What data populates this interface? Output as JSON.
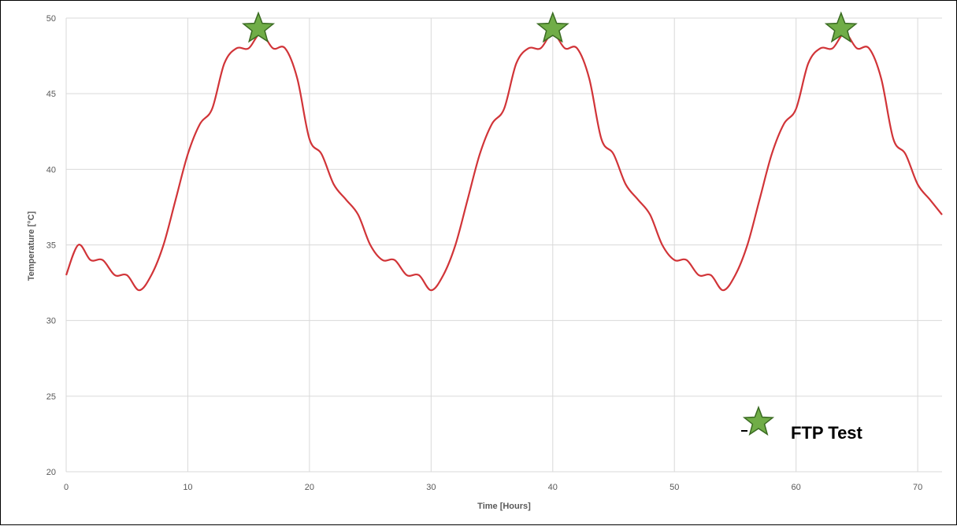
{
  "chart_data": {
    "type": "line",
    "xlabel": "Time [Hours]",
    "ylabel": "Temperature [°C]",
    "xlim": [
      0,
      72
    ],
    "ylim": [
      20,
      50
    ],
    "x_ticks": [
      0,
      10,
      20,
      30,
      40,
      50,
      60,
      70
    ],
    "y_ticks": [
      20,
      25,
      30,
      35,
      40,
      45,
      50
    ],
    "grid": true,
    "series": [
      {
        "color": "#d13438",
        "x": [
          0,
          1,
          2,
          3,
          4,
          5,
          6,
          7,
          8,
          9,
          10,
          11,
          12,
          13,
          14,
          15,
          16,
          17,
          18,
          19,
          20,
          21,
          22,
          23,
          24,
          25,
          26,
          27,
          28,
          29,
          30,
          31,
          32,
          33,
          34,
          35,
          36,
          37,
          38,
          39,
          40,
          41,
          42,
          43,
          44,
          45,
          46,
          47,
          48,
          49,
          50,
          51,
          52,
          53,
          54,
          55,
          56,
          57,
          58,
          59,
          60,
          61,
          62,
          63,
          64,
          65,
          66,
          67,
          68,
          69,
          70,
          71,
          72
        ],
        "y": [
          33,
          35,
          34,
          34,
          33,
          33,
          32,
          33,
          35,
          38,
          41,
          43,
          44,
          47,
          48,
          48,
          49,
          48,
          48,
          46,
          42,
          41,
          39,
          38,
          37,
          35,
          34,
          34,
          33,
          33,
          32,
          33,
          35,
          38,
          41,
          43,
          44,
          47,
          48,
          48,
          49,
          48,
          48,
          46,
          42,
          41,
          39,
          38,
          37,
          35,
          34,
          34,
          33,
          33,
          32,
          33,
          35,
          38,
          41,
          43,
          44,
          47,
          48,
          48,
          49,
          48,
          48,
          46,
          42,
          41,
          39,
          38,
          37
        ]
      }
    ],
    "markers": [
      {
        "x": 15.8,
        "y": 49.3,
        "shape": "star",
        "color": "#70ad47"
      },
      {
        "x": 40,
        "y": 49.3,
        "shape": "star",
        "color": "#70ad47"
      },
      {
        "x": 63.7,
        "y": 49.3,
        "shape": "star",
        "color": "#70ad47"
      }
    ],
    "legend": {
      "position": "bottom-right",
      "entries": [
        {
          "label": "FTP Test",
          "marker": "star",
          "color": "#70ad47"
        }
      ]
    }
  }
}
